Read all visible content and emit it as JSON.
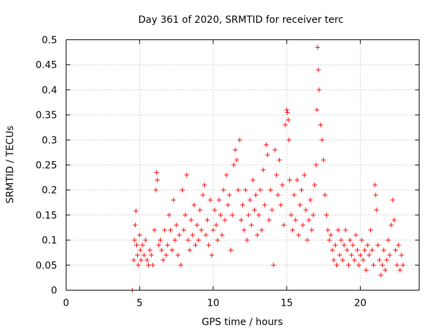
{
  "chart_data": {
    "type": "scatter",
    "title": "Day 361 of 2020, SRMTID for receiver terc",
    "xlabel": "GPS time / hours",
    "ylabel": "SRMTID / TECUs",
    "xlim": [
      0,
      24
    ],
    "ylim": [
      0,
      0.5
    ],
    "xticks": [
      0,
      5,
      10,
      15,
      20
    ],
    "xtick_labels": [
      "0",
      "5",
      "10",
      "15",
      "20"
    ],
    "yticks": [
      0,
      0.05,
      0.1,
      0.15,
      0.2,
      0.25,
      0.3,
      0.35,
      0.4,
      0.45,
      0.5
    ],
    "ytick_labels": [
      "0",
      "0.05",
      "0.1",
      "0.15",
      "0.2",
      "0.25",
      "0.3",
      "0.35",
      "0.4",
      "0.45",
      "0.5"
    ],
    "grid": true,
    "marker": "+",
    "color": "#ff0000",
    "series": [
      {
        "name": "SRMTID",
        "points": [
          [
            4.5,
            0.0
          ],
          [
            4.6,
            0.06
          ],
          [
            4.65,
            0.1
          ],
          [
            4.7,
            0.13
          ],
          [
            4.75,
            0.158
          ],
          [
            4.8,
            0.09
          ],
          [
            4.85,
            0.07
          ],
          [
            4.9,
            0.05
          ],
          [
            5.0,
            0.11
          ],
          [
            5.05,
            0.08
          ],
          [
            5.1,
            0.06
          ],
          [
            5.2,
            0.09
          ],
          [
            5.3,
            0.07
          ],
          [
            5.4,
            0.1
          ],
          [
            5.5,
            0.06
          ],
          [
            5.6,
            0.05
          ],
          [
            5.7,
            0.08
          ],
          [
            5.8,
            0.07
          ],
          [
            5.9,
            0.05
          ],
          [
            6.0,
            0.12
          ],
          [
            6.1,
            0.2
          ],
          [
            6.15,
            0.235
          ],
          [
            6.2,
            0.22
          ],
          [
            6.3,
            0.09
          ],
          [
            6.4,
            0.1
          ],
          [
            6.5,
            0.08
          ],
          [
            6.6,
            0.06
          ],
          [
            6.7,
            0.12
          ],
          [
            6.8,
            0.07
          ],
          [
            6.9,
            0.09
          ],
          [
            7.0,
            0.15
          ],
          [
            7.1,
            0.12
          ],
          [
            7.2,
            0.08
          ],
          [
            7.3,
            0.18
          ],
          [
            7.4,
            0.1
          ],
          [
            7.5,
            0.13
          ],
          [
            7.6,
            0.07
          ],
          [
            7.7,
            0.11
          ],
          [
            7.8,
            0.05
          ],
          [
            7.9,
            0.2
          ],
          [
            8.0,
            0.12
          ],
          [
            8.1,
            0.15
          ],
          [
            8.2,
            0.23
          ],
          [
            8.3,
            0.1
          ],
          [
            8.4,
            0.08
          ],
          [
            8.5,
            0.14
          ],
          [
            8.6,
            0.11
          ],
          [
            8.7,
            0.17
          ],
          [
            8.8,
            0.09
          ],
          [
            8.9,
            0.13
          ],
          [
            9.0,
            0.1
          ],
          [
            9.1,
            0.16
          ],
          [
            9.2,
            0.12
          ],
          [
            9.3,
            0.19
          ],
          [
            9.4,
            0.21
          ],
          [
            9.5,
            0.11
          ],
          [
            9.6,
            0.14
          ],
          [
            9.7,
            0.09
          ],
          [
            9.8,
            0.18
          ],
          [
            9.9,
            0.07
          ],
          [
            10.0,
            0.12
          ],
          [
            10.1,
            0.16
          ],
          [
            10.2,
            0.13
          ],
          [
            10.3,
            0.1
          ],
          [
            10.4,
            0.18
          ],
          [
            10.5,
            0.15
          ],
          [
            10.6,
            0.11
          ],
          [
            10.7,
            0.2
          ],
          [
            10.8,
            0.14
          ],
          [
            10.9,
            0.23
          ],
          [
            11.0,
            0.17
          ],
          [
            11.1,
            0.19
          ],
          [
            11.2,
            0.08
          ],
          [
            11.3,
            0.15
          ],
          [
            11.4,
            0.25
          ],
          [
            11.5,
            0.28
          ],
          [
            11.6,
            0.26
          ],
          [
            11.7,
            0.2
          ],
          [
            11.8,
            0.3
          ],
          [
            11.9,
            0.14
          ],
          [
            12.0,
            0.17
          ],
          [
            12.1,
            0.12
          ],
          [
            12.2,
            0.2
          ],
          [
            12.3,
            0.1
          ],
          [
            12.4,
            0.15
          ],
          [
            12.5,
            0.18
          ],
          [
            12.6,
            0.13
          ],
          [
            12.7,
            0.22
          ],
          [
            12.8,
            0.16
          ],
          [
            12.9,
            0.19
          ],
          [
            13.0,
            0.11
          ],
          [
            13.1,
            0.15
          ],
          [
            13.2,
            0.2
          ],
          [
            13.3,
            0.12
          ],
          [
            13.4,
            0.24
          ],
          [
            13.5,
            0.17
          ],
          [
            13.6,
            0.29
          ],
          [
            13.7,
            0.27
          ],
          [
            13.8,
            0.14
          ],
          [
            13.9,
            0.2
          ],
          [
            14.0,
            0.16
          ],
          [
            14.1,
            0.05
          ],
          [
            14.2,
            0.28
          ],
          [
            14.3,
            0.23
          ],
          [
            14.4,
            0.19
          ],
          [
            14.5,
            0.26
          ],
          [
            14.6,
            0.17
          ],
          [
            14.7,
            0.21
          ],
          [
            14.8,
            0.13
          ],
          [
            14.9,
            0.33
          ],
          [
            15.0,
            0.36
          ],
          [
            15.05,
            0.355
          ],
          [
            15.1,
            0.34
          ],
          [
            15.15,
            0.3
          ],
          [
            15.2,
            0.22
          ],
          [
            15.3,
            0.15
          ],
          [
            15.4,
            0.12
          ],
          [
            15.5,
            0.19
          ],
          [
            15.6,
            0.14
          ],
          [
            15.7,
            0.22
          ],
          [
            15.8,
            0.11
          ],
          [
            15.9,
            0.17
          ],
          [
            16.0,
            0.2
          ],
          [
            16.1,
            0.13
          ],
          [
            16.2,
            0.23
          ],
          [
            16.3,
            0.16
          ],
          [
            16.4,
            0.1
          ],
          [
            16.5,
            0.14
          ],
          [
            16.6,
            0.18
          ],
          [
            16.7,
            0.12
          ],
          [
            16.8,
            0.15
          ],
          [
            16.9,
            0.21
          ],
          [
            17.0,
            0.25
          ],
          [
            17.05,
            0.36
          ],
          [
            17.1,
            0.485
          ],
          [
            17.15,
            0.44
          ],
          [
            17.2,
            0.4
          ],
          [
            17.3,
            0.33
          ],
          [
            17.4,
            0.3
          ],
          [
            17.5,
            0.26
          ],
          [
            17.6,
            0.19
          ],
          [
            17.7,
            0.15
          ],
          [
            17.8,
            0.12
          ],
          [
            17.9,
            0.1
          ],
          [
            18.0,
            0.11
          ],
          [
            18.1,
            0.08
          ],
          [
            18.2,
            0.06
          ],
          [
            18.3,
            0.09
          ],
          [
            18.4,
            0.05
          ],
          [
            18.5,
            0.12
          ],
          [
            18.6,
            0.07
          ],
          [
            18.7,
            0.1
          ],
          [
            18.8,
            0.06
          ],
          [
            18.9,
            0.09
          ],
          [
            19.0,
            0.12
          ],
          [
            19.1,
            0.08
          ],
          [
            19.2,
            0.05
          ],
          [
            19.3,
            0.1
          ],
          [
            19.4,
            0.07
          ],
          [
            19.5,
            0.09
          ],
          [
            19.6,
            0.06
          ],
          [
            19.7,
            0.11
          ],
          [
            19.8,
            0.08
          ],
          [
            19.9,
            0.05
          ],
          [
            20.0,
            0.07
          ],
          [
            20.1,
            0.1
          ],
          [
            20.2,
            0.06
          ],
          [
            20.3,
            0.08
          ],
          [
            20.4,
            0.04
          ],
          [
            20.5,
            0.09
          ],
          [
            20.6,
            0.07
          ],
          [
            20.7,
            0.12
          ],
          [
            20.8,
            0.08
          ],
          [
            20.9,
            0.05
          ],
          [
            21.0,
            0.21
          ],
          [
            21.05,
            0.19
          ],
          [
            21.1,
            0.16
          ],
          [
            21.2,
            0.09
          ],
          [
            21.3,
            0.06
          ],
          [
            21.4,
            0.03
          ],
          [
            21.5,
            0.05
          ],
          [
            21.6,
            0.08
          ],
          [
            21.7,
            0.04
          ],
          [
            21.8,
            0.06
          ],
          [
            21.9,
            0.1
          ],
          [
            22.0,
            0.07
          ],
          [
            22.1,
            0.13
          ],
          [
            22.2,
            0.18
          ],
          [
            22.3,
            0.14
          ],
          [
            22.4,
            0.08
          ],
          [
            22.5,
            0.05
          ],
          [
            22.6,
            0.09
          ],
          [
            22.7,
            0.04
          ],
          [
            22.8,
            0.07
          ],
          [
            22.9,
            0.05
          ]
        ]
      }
    ]
  }
}
